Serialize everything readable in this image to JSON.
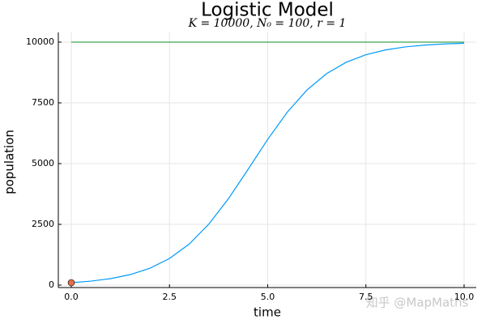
{
  "chart_data": {
    "type": "line",
    "title": "Logistic Model",
    "subtitle": "K = 10000, N₀ = 100, r = 1",
    "x_label": "time",
    "y_label": "population",
    "watermark": "知乎 @MapMaths",
    "xlim": [
      -0.33,
      10.31
    ],
    "ylim": [
      -100,
      10400
    ],
    "xticks": [
      {
        "value": 0,
        "label": "0.0"
      },
      {
        "value": 2.5,
        "label": "2.5"
      },
      {
        "value": 5,
        "label": "5.0"
      },
      {
        "value": 7.5,
        "label": "7.5"
      },
      {
        "value": 10,
        "label": "10.0"
      }
    ],
    "yticks": [
      0,
      2500,
      5000,
      7500,
      10000
    ],
    "grid": true,
    "series": [
      {
        "type": "line",
        "color": "#009af9",
        "x": [
          0,
          0.5,
          1,
          1.5,
          2,
          2.5,
          3,
          3.5,
          4,
          4.5,
          5,
          5.5,
          6,
          6.5,
          7,
          7.5,
          8,
          8.5,
          9,
          9.5,
          10
        ],
        "values": [
          100,
          164,
          267,
          433,
          695,
          1096,
          1687,
          2507,
          3555,
          4762,
          5999,
          7120,
          8030,
          8704,
          9172,
          9481,
          9679,
          9803,
          9879,
          9926,
          9955
        ]
      },
      {
        "type": "line",
        "color": "#3da44d",
        "x": [
          0,
          10
        ],
        "values": [
          10000,
          10000
        ]
      },
      {
        "type": "scatter",
        "color": "#e26f46",
        "x": [
          0
        ],
        "values": [
          100
        ]
      }
    ]
  }
}
